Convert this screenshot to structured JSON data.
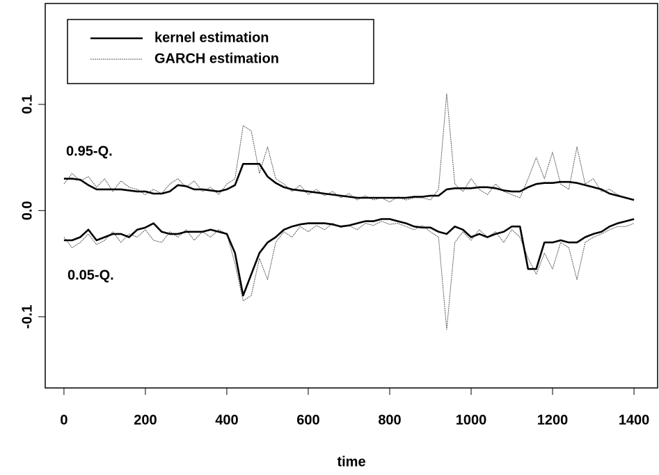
{
  "chart_data": {
    "type": "line",
    "x_label": "time",
    "x": [
      0,
      20,
      40,
      60,
      80,
      100,
      120,
      140,
      160,
      180,
      200,
      220,
      240,
      260,
      280,
      300,
      320,
      340,
      360,
      380,
      400,
      420,
      440,
      460,
      480,
      500,
      520,
      540,
      560,
      580,
      600,
      620,
      640,
      660,
      680,
      700,
      720,
      740,
      760,
      780,
      800,
      820,
      840,
      860,
      880,
      900,
      920,
      940,
      960,
      980,
      1000,
      1020,
      1040,
      1060,
      1080,
      1100,
      1120,
      1140,
      1160,
      1180,
      1200,
      1220,
      1240,
      1260,
      1280,
      1300,
      1320,
      1340,
      1360,
      1380,
      1400
    ],
    "series": [
      {
        "name": "kernel estimation",
        "color": "#000000",
        "upper": [
          0.03,
          0.03,
          0.029,
          0.024,
          0.02,
          0.02,
          0.02,
          0.02,
          0.019,
          0.018,
          0.018,
          0.016,
          0.016,
          0.018,
          0.024,
          0.023,
          0.02,
          0.02,
          0.019,
          0.018,
          0.02,
          0.024,
          0.044,
          0.044,
          0.044,
          0.032,
          0.026,
          0.022,
          0.02,
          0.019,
          0.018,
          0.017,
          0.016,
          0.015,
          0.014,
          0.013,
          0.012,
          0.012,
          0.012,
          0.012,
          0.012,
          0.012,
          0.012,
          0.013,
          0.013,
          0.014,
          0.014,
          0.02,
          0.021,
          0.021,
          0.021,
          0.022,
          0.022,
          0.021,
          0.019,
          0.018,
          0.018,
          0.022,
          0.025,
          0.026,
          0.026,
          0.027,
          0.027,
          0.026,
          0.024,
          0.022,
          0.02,
          0.016,
          0.014,
          0.012,
          0.01
        ],
        "lower": [
          -0.028,
          -0.028,
          -0.025,
          -0.018,
          -0.028,
          -0.025,
          -0.022,
          -0.022,
          -0.025,
          -0.018,
          -0.016,
          -0.012,
          -0.02,
          -0.022,
          -0.022,
          -0.02,
          -0.02,
          -0.02,
          -0.018,
          -0.02,
          -0.022,
          -0.04,
          -0.08,
          -0.06,
          -0.04,
          -0.03,
          -0.025,
          -0.018,
          -0.015,
          -0.013,
          -0.012,
          -0.012,
          -0.012,
          -0.013,
          -0.015,
          -0.014,
          -0.012,
          -0.01,
          -0.01,
          -0.008,
          -0.008,
          -0.01,
          -0.012,
          -0.015,
          -0.016,
          -0.016,
          -0.02,
          -0.022,
          -0.015,
          -0.018,
          -0.025,
          -0.022,
          -0.025,
          -0.022,
          -0.02,
          -0.015,
          -0.015,
          -0.055,
          -0.055,
          -0.03,
          -0.03,
          -0.028,
          -0.03,
          -0.03,
          -0.025,
          -0.022,
          -0.02,
          -0.015,
          -0.012,
          -0.01,
          -0.008
        ]
      },
      {
        "name": "GARCH estimation",
        "color": "#555555",
        "upper": [
          0.025,
          0.035,
          0.028,
          0.032,
          0.022,
          0.03,
          0.018,
          0.028,
          0.022,
          0.02,
          0.015,
          0.02,
          0.016,
          0.025,
          0.03,
          0.022,
          0.028,
          0.018,
          0.022,
          0.015,
          0.025,
          0.03,
          0.08,
          0.075,
          0.035,
          0.06,
          0.03,
          0.025,
          0.018,
          0.024,
          0.015,
          0.02,
          0.014,
          0.018,
          0.012,
          0.016,
          0.01,
          0.014,
          0.01,
          0.012,
          0.008,
          0.013,
          0.01,
          0.012,
          0.012,
          0.01,
          0.02,
          0.11,
          0.025,
          0.018,
          0.03,
          0.02,
          0.015,
          0.025,
          0.018,
          0.015,
          0.012,
          0.03,
          0.05,
          0.03,
          0.055,
          0.025,
          0.02,
          0.06,
          0.025,
          0.03,
          0.018,
          0.02,
          0.015,
          0.012,
          0.01
        ],
        "lower": [
          -0.025,
          -0.035,
          -0.03,
          -0.022,
          -0.032,
          -0.028,
          -0.02,
          -0.03,
          -0.022,
          -0.025,
          -0.018,
          -0.028,
          -0.03,
          -0.02,
          -0.025,
          -0.018,
          -0.028,
          -0.02,
          -0.025,
          -0.018,
          -0.022,
          -0.05,
          -0.085,
          -0.08,
          -0.045,
          -0.065,
          -0.03,
          -0.02,
          -0.025,
          -0.015,
          -0.02,
          -0.014,
          -0.018,
          -0.012,
          -0.016,
          -0.014,
          -0.018,
          -0.012,
          -0.014,
          -0.01,
          -0.013,
          -0.012,
          -0.015,
          -0.018,
          -0.014,
          -0.02,
          -0.025,
          -0.112,
          -0.03,
          -0.02,
          -0.028,
          -0.018,
          -0.025,
          -0.02,
          -0.03,
          -0.018,
          -0.025,
          -0.045,
          -0.06,
          -0.04,
          -0.055,
          -0.03,
          -0.035,
          -0.065,
          -0.03,
          -0.025,
          -0.022,
          -0.018,
          -0.015,
          -0.015,
          -0.012
        ]
      }
    ],
    "annotations": [
      "0.95-Q.",
      "0.05-Q."
    ],
    "xlim": [
      -46,
      1458
    ],
    "ylim": [
      -0.167,
      0.195
    ],
    "xticks": [
      0,
      200,
      400,
      600,
      800,
      1000,
      1200,
      1400
    ],
    "yticks": [
      -0.1,
      {
        "value": 0,
        "label": "0.0"
      },
      0.1
    ]
  }
}
